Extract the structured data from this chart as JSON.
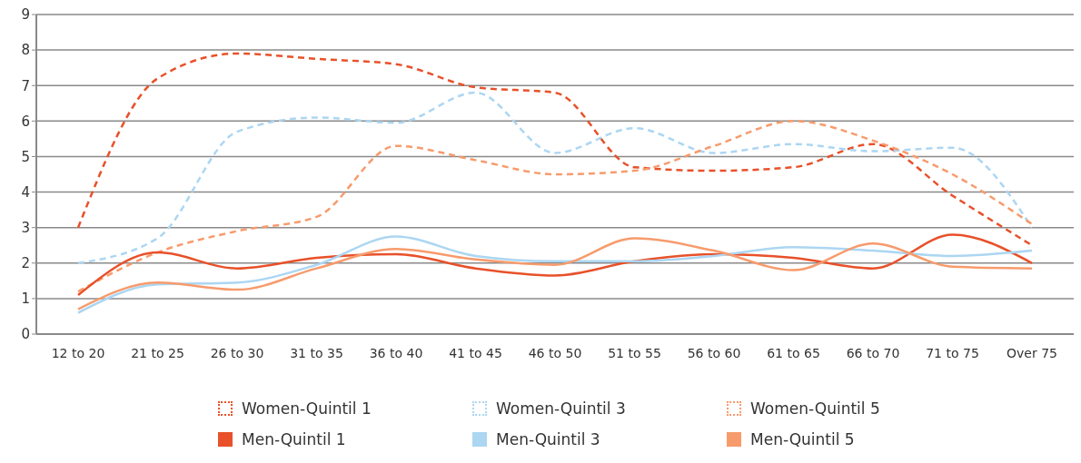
{
  "chart_data": {
    "type": "line",
    "categories": [
      "12 to 20",
      "21 to 25",
      "26 to 30",
      "31 to 35",
      "36 to 40",
      "41 to 45",
      "46 to 50",
      "51 to 55",
      "56 to 60",
      "61 to 65",
      "66 to 70",
      "71 to 75",
      "Over 75"
    ],
    "series": [
      {
        "name": "Women-Quintil 1",
        "color": "#e8512a",
        "line_style": "dashed",
        "values": [
          3.0,
          7.2,
          7.9,
          7.75,
          7.6,
          6.95,
          6.8,
          4.7,
          4.6,
          4.7,
          5.35,
          3.9,
          2.5
        ]
      },
      {
        "name": "Women-Quintil 3",
        "color": "#acd6f2",
        "line_style": "dashed",
        "values": [
          2.0,
          2.7,
          5.7,
          6.1,
          5.95,
          6.8,
          5.1,
          5.8,
          5.1,
          5.35,
          5.15,
          5.25,
          3.0
        ]
      },
      {
        "name": "Women-Quintil 5",
        "color": "#f79b6c",
        "line_style": "dashed",
        "values": [
          1.2,
          2.3,
          2.9,
          3.3,
          5.3,
          4.9,
          4.5,
          4.6,
          5.3,
          6.0,
          5.45,
          4.5,
          3.1
        ]
      },
      {
        "name": "Men-Quintil 1",
        "color": "#e8512a",
        "line_style": "solid",
        "values": [
          1.1,
          2.3,
          1.85,
          2.15,
          2.25,
          1.85,
          1.65,
          2.05,
          2.25,
          2.15,
          1.85,
          2.8,
          2.0
        ]
      },
      {
        "name": "Men-Quintil 3",
        "color": "#acd6f2",
        "line_style": "solid",
        "values": [
          0.6,
          1.4,
          1.45,
          1.95,
          2.75,
          2.2,
          2.05,
          2.05,
          2.2,
          2.45,
          2.35,
          2.2,
          2.35
        ]
      },
      {
        "name": "Men-Quintil 5",
        "color": "#f79b6c",
        "line_style": "solid",
        "values": [
          0.7,
          1.45,
          1.25,
          1.85,
          2.4,
          2.1,
          1.95,
          2.7,
          2.35,
          1.8,
          2.55,
          1.9,
          1.85
        ]
      }
    ],
    "ylim": [
      0,
      9
    ],
    "yticks": [
      0,
      1,
      2,
      3,
      4,
      5,
      6,
      7,
      8,
      9
    ],
    "grid": "y",
    "legend": "bottom",
    "marker": "none"
  }
}
